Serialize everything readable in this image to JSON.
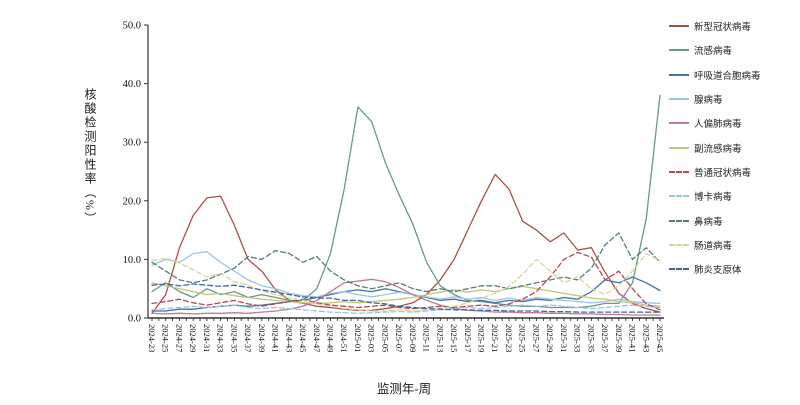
{
  "axes": {
    "y_title": "核酸检测阳性率（%）",
    "x_title": "监测年-周",
    "y_tick_labels": [
      "0.0",
      "10.0",
      "20.0",
      "30.0",
      "40.0",
      "50.0"
    ],
    "ylim": [
      0,
      50
    ],
    "grid": "off",
    "legend_position": "right-outside"
  },
  "chart_data": {
    "type": "line",
    "title": "",
    "xlabel": "监测年-周",
    "ylabel": "核酸检测阳性率（%）",
    "ylim": [
      0,
      50
    ],
    "yticks": [
      0,
      10,
      20,
      30,
      40,
      50
    ],
    "categories": [
      "2024-23",
      "2024-25",
      "2024-27",
      "2024-29",
      "2024-31",
      "2024-33",
      "2024-35",
      "2024-37",
      "2024-39",
      "2024-41",
      "2024-43",
      "2024-45",
      "2024-47",
      "2024-49",
      "2024-51",
      "2025-01",
      "2025-03",
      "2025-05",
      "2025-07",
      "2025-09",
      "2025-11",
      "2025-13",
      "2025-15",
      "2025-17",
      "2025-19",
      "2025-21",
      "2025-23",
      "2025-25",
      "2025-27",
      "2025-29",
      "2025-31",
      "2025-33",
      "2025-35",
      "2025-37",
      "2025-39",
      "2025-41",
      "2025-43",
      "2025-45"
    ],
    "series": [
      {
        "id": "covid",
        "name": "新型冠状病毒",
        "color": "#ac4e48",
        "dashed": false,
        "values": [
          0.8,
          4,
          12,
          17.5,
          20.5,
          20.8,
          15.8,
          10,
          8,
          4.8,
          3,
          2.5,
          2,
          1.8,
          1.5,
          1.3,
          1.3,
          1.6,
          2,
          2.6,
          4,
          6.5,
          10,
          15,
          20,
          24.5,
          22,
          16.5,
          15,
          13,
          14.5,
          11.6,
          12,
          7.8,
          4.2,
          2.5,
          1.6,
          1
        ]
      },
      {
        "id": "influenza",
        "name": "流感病毒",
        "color": "#68998a",
        "dashed": false,
        "values": [
          4.5,
          6,
          4.5,
          3.5,
          5,
          4,
          4.5,
          3.5,
          4,
          3.5,
          3,
          3,
          5,
          11,
          22,
          36,
          33.5,
          26.5,
          21,
          16,
          9.5,
          5.5,
          4,
          3,
          2.8,
          2.5,
          2.2,
          2,
          2,
          1.8,
          1.8,
          1.8,
          2,
          2.5,
          2.5,
          6,
          17,
          38
        ]
      },
      {
        "id": "rsv",
        "name": "呼吸道合胞病毒",
        "color": "#44719e",
        "dashed": false,
        "values": [
          1.2,
          1.2,
          1.5,
          1.5,
          1.8,
          2,
          2.2,
          2,
          2.2,
          2.5,
          2.8,
          3,
          3.5,
          4,
          4.5,
          4.8,
          4.5,
          5,
          4.5,
          4,
          3.5,
          3,
          3.2,
          2.8,
          3,
          2.6,
          3,
          2.8,
          3.2,
          3,
          3.5,
          3.2,
          4.5,
          6.5,
          6,
          7,
          6,
          4.7
        ]
      },
      {
        "id": "adenovirus",
        "name": "腺病毒",
        "color": "#9dc3e6",
        "dashed": false,
        "values": [
          9,
          10,
          9.5,
          11,
          11.3,
          9.5,
          8,
          6.5,
          5.5,
          5,
          4.2,
          3.8,
          3.6,
          4.2,
          4.5,
          4,
          3.6,
          4,
          4.4,
          4,
          3.6,
          3.2,
          3.6,
          3.2,
          3.5,
          3,
          3.4,
          3,
          3.5,
          3.2,
          3,
          2.8,
          2.6,
          2.8,
          3.2,
          2.8,
          2.6,
          2.5
        ]
      },
      {
        "id": "hmpv",
        "name": "人偏肺病毒",
        "color": "#bf7b93",
        "dashed": false,
        "values": [
          0.8,
          0.7,
          0.8,
          0.7,
          0.8,
          0.8,
          0.9,
          0.8,
          1,
          1.2,
          1.5,
          2,
          3,
          4.5,
          6,
          6.3,
          6.6,
          6.2,
          5.2,
          4,
          3,
          2.2,
          1.6,
          1.3,
          1.2,
          1,
          1,
          0.9,
          0.9,
          0.8,
          0.8,
          0.7,
          0.7,
          0.6,
          0.6,
          0.5,
          0.5,
          0.5
        ]
      },
      {
        "id": "parainfluenza",
        "name": "副流感病毒",
        "color": "#c3c377",
        "dashed": false,
        "values": [
          6,
          5.5,
          5,
          4.5,
          4,
          4.2,
          3.8,
          3.5,
          3.2,
          3,
          2.8,
          2.6,
          2.5,
          2.6,
          2.8,
          2.6,
          2.8,
          3,
          3.2,
          3.5,
          4,
          4.4,
          4.8,
          4.4,
          4.8,
          4.5,
          5,
          5.4,
          5,
          4.6,
          4.2,
          3.8,
          3.4,
          3.2,
          2.8,
          2.6,
          2.2,
          2
        ]
      },
      {
        "id": "common-coronavirus",
        "name": "普通冠状病毒",
        "color": "#b24a52",
        "dashed": true,
        "values": [
          2.5,
          2.8,
          3.2,
          2.6,
          2.2,
          2.6,
          3,
          2.4,
          2,
          2.4,
          2.8,
          3.2,
          2.6,
          2.2,
          2,
          1.8,
          2,
          2.2,
          1.8,
          1.6,
          1.8,
          2,
          1.8,
          2,
          2.2,
          2,
          2.4,
          3.2,
          4.5,
          7,
          10,
          11.2,
          10.4,
          6.5,
          8,
          5,
          2.4,
          1.4
        ]
      },
      {
        "id": "bocavirus",
        "name": "博卡病毒",
        "color": "#9dc3e6",
        "dashed": true,
        "values": [
          1.4,
          1.6,
          1.8,
          2,
          1.8,
          2,
          2.2,
          1.8,
          1.6,
          1.8,
          1.6,
          1.4,
          1.2,
          1,
          0.9,
          0.8,
          0.9,
          1,
          1.1,
          1,
          1.2,
          1.4,
          1.6,
          1.8,
          1.6,
          1.8,
          2,
          2.2,
          2,
          2.2,
          2,
          1.8,
          1.6,
          1.8,
          2,
          2.2,
          2,
          1.8
        ]
      },
      {
        "id": "rhinovirus",
        "name": "鼻病毒",
        "color": "#527d78",
        "dashed": true,
        "values": [
          9.5,
          8,
          6.5,
          6,
          6.5,
          7.5,
          8.5,
          10.5,
          10,
          11.5,
          11,
          9.5,
          10.5,
          8,
          6.5,
          5.5,
          5,
          5.5,
          6,
          5,
          4.5,
          5,
          4.5,
          5,
          5.5,
          5.5,
          5,
          5.5,
          6,
          6.5,
          7,
          6.5,
          8.5,
          12.5,
          14.5,
          10,
          12,
          9.5
        ]
      },
      {
        "id": "enterovirus",
        "name": "肠道病毒",
        "color": "#d6d69c",
        "dashed": true,
        "values": [
          9.8,
          10.2,
          9.4,
          8.2,
          7,
          7.6,
          6.2,
          5.6,
          4.6,
          4,
          3.4,
          3,
          2.4,
          2,
          1.6,
          1.4,
          1.2,
          1.2,
          1.4,
          1.2,
          1.4,
          1.6,
          2,
          2.6,
          3.4,
          4.2,
          5.4,
          7.5,
          10,
          8,
          6,
          7,
          5,
          4,
          5.5,
          8,
          11,
          9.8
        ]
      },
      {
        "id": "mycoplasma",
        "name": "肺炎支原体",
        "color": "#3f6695",
        "dashed": true,
        "values": [
          5.6,
          5.8,
          5.5,
          5.8,
          5.6,
          5.4,
          5.6,
          5.2,
          4.8,
          4.4,
          4,
          3.6,
          3.4,
          3.4,
          3,
          3,
          2.6,
          2.4,
          2,
          1.8,
          1.6,
          1.5,
          1.4,
          1.4,
          1.3,
          1.3,
          1.2,
          1.2,
          1.2,
          1.1,
          1.1,
          1,
          1,
          1,
          1,
          1,
          1,
          1
        ]
      }
    ]
  }
}
